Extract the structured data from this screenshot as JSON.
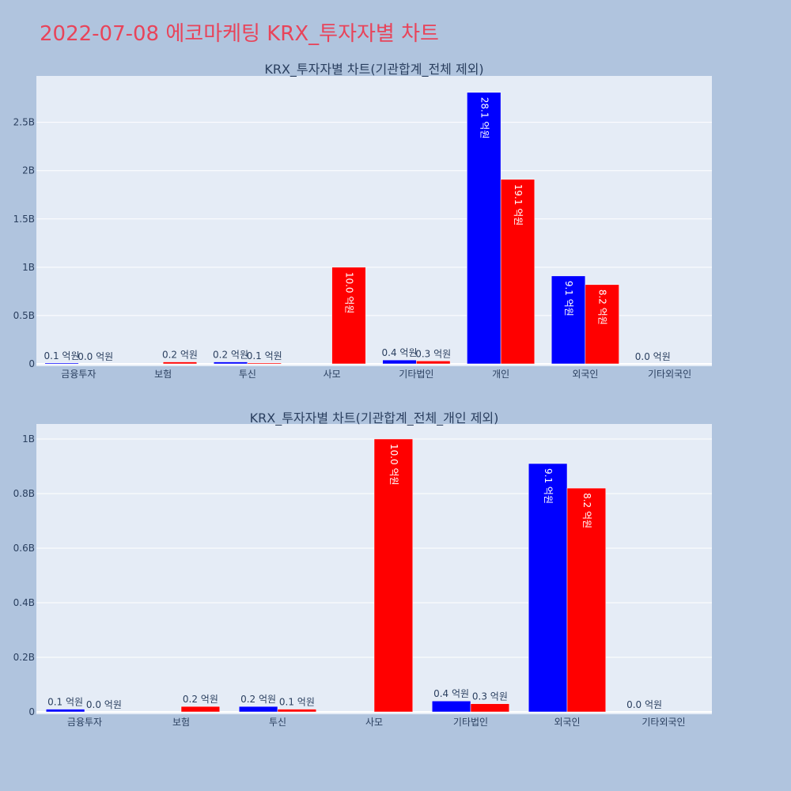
{
  "page": {
    "title": "2022-07-08 에코마케팅 KRX_투자자별 차트"
  },
  "colors": {
    "background": "#b0c4de",
    "plot_bg": "#e5ecf6",
    "title": "#e8445a",
    "buy": "#0000ff",
    "sell": "#ff0000",
    "text": "#2a3f5f"
  },
  "chart_data": [
    {
      "type": "bar",
      "title": "KRX_투자자별 차트(기관합계_전체 제외)",
      "categories": [
        "금융투자",
        "보험",
        "투신",
        "사모",
        "기타법인",
        "개인",
        "외국인",
        "기타외국인"
      ],
      "ylim": [
        0,
        2980000000
      ],
      "yticks": [
        {
          "value": 0,
          "label": "0"
        },
        {
          "value": 500000000,
          "label": "0.5B"
        },
        {
          "value": 1000000000,
          "label": "1B"
        },
        {
          "value": 1500000000,
          "label": "1.5B"
        },
        {
          "value": 2000000000,
          "label": "2B"
        },
        {
          "value": 2500000000,
          "label": "2.5B"
        }
      ],
      "grid": true,
      "series": [
        {
          "color": "#0000ff",
          "values": [
            10000000,
            0,
            20000000,
            0,
            40000000,
            2810000000,
            910000000,
            0
          ],
          "labels": [
            "0.1 억원",
            "",
            "0.2 억원",
            "",
            "0.4 억원",
            "28.1 억원",
            "9.1 억원",
            "0.0 억원"
          ]
        },
        {
          "color": "#ff0000",
          "values": [
            0,
            20000000,
            10000000,
            1000000000,
            30000000,
            1910000000,
            820000000,
            0
          ],
          "labels": [
            "0.0 억원",
            "0.2 억원",
            "0.1 억원",
            "10.0 억원",
            "0.3 억원",
            "19.1 억원",
            "8.2 억원",
            ""
          ]
        }
      ]
    },
    {
      "type": "bar",
      "title": "KRX_투자자별 차트(기관합계_전체_개인 제외)",
      "categories": [
        "금융투자",
        "보험",
        "투신",
        "사모",
        "기타법인",
        "외국인",
        "기타외국인"
      ],
      "ylim": [
        0,
        1055000000
      ],
      "yticks": [
        {
          "value": 0,
          "label": "0"
        },
        {
          "value": 200000000,
          "label": "0.2B"
        },
        {
          "value": 400000000,
          "label": "0.4B"
        },
        {
          "value": 600000000,
          "label": "0.6B"
        },
        {
          "value": 800000000,
          "label": "0.8B"
        },
        {
          "value": 1000000000,
          "label": "1B"
        }
      ],
      "grid": true,
      "series": [
        {
          "color": "#0000ff",
          "values": [
            10000000,
            0,
            20000000,
            0,
            40000000,
            910000000,
            0
          ],
          "labels": [
            "0.1 억원",
            "",
            "0.2 억원",
            "",
            "0.4 억원",
            "9.1 억원",
            "0.0 억원"
          ]
        },
        {
          "color": "#ff0000",
          "values": [
            0,
            20000000,
            10000000,
            1000000000,
            30000000,
            820000000,
            0
          ],
          "labels": [
            "0.0 억원",
            "0.2 억원",
            "0.1 억원",
            "10.0 억원",
            "0.3 억원",
            "8.2 억원",
            ""
          ]
        }
      ]
    }
  ]
}
